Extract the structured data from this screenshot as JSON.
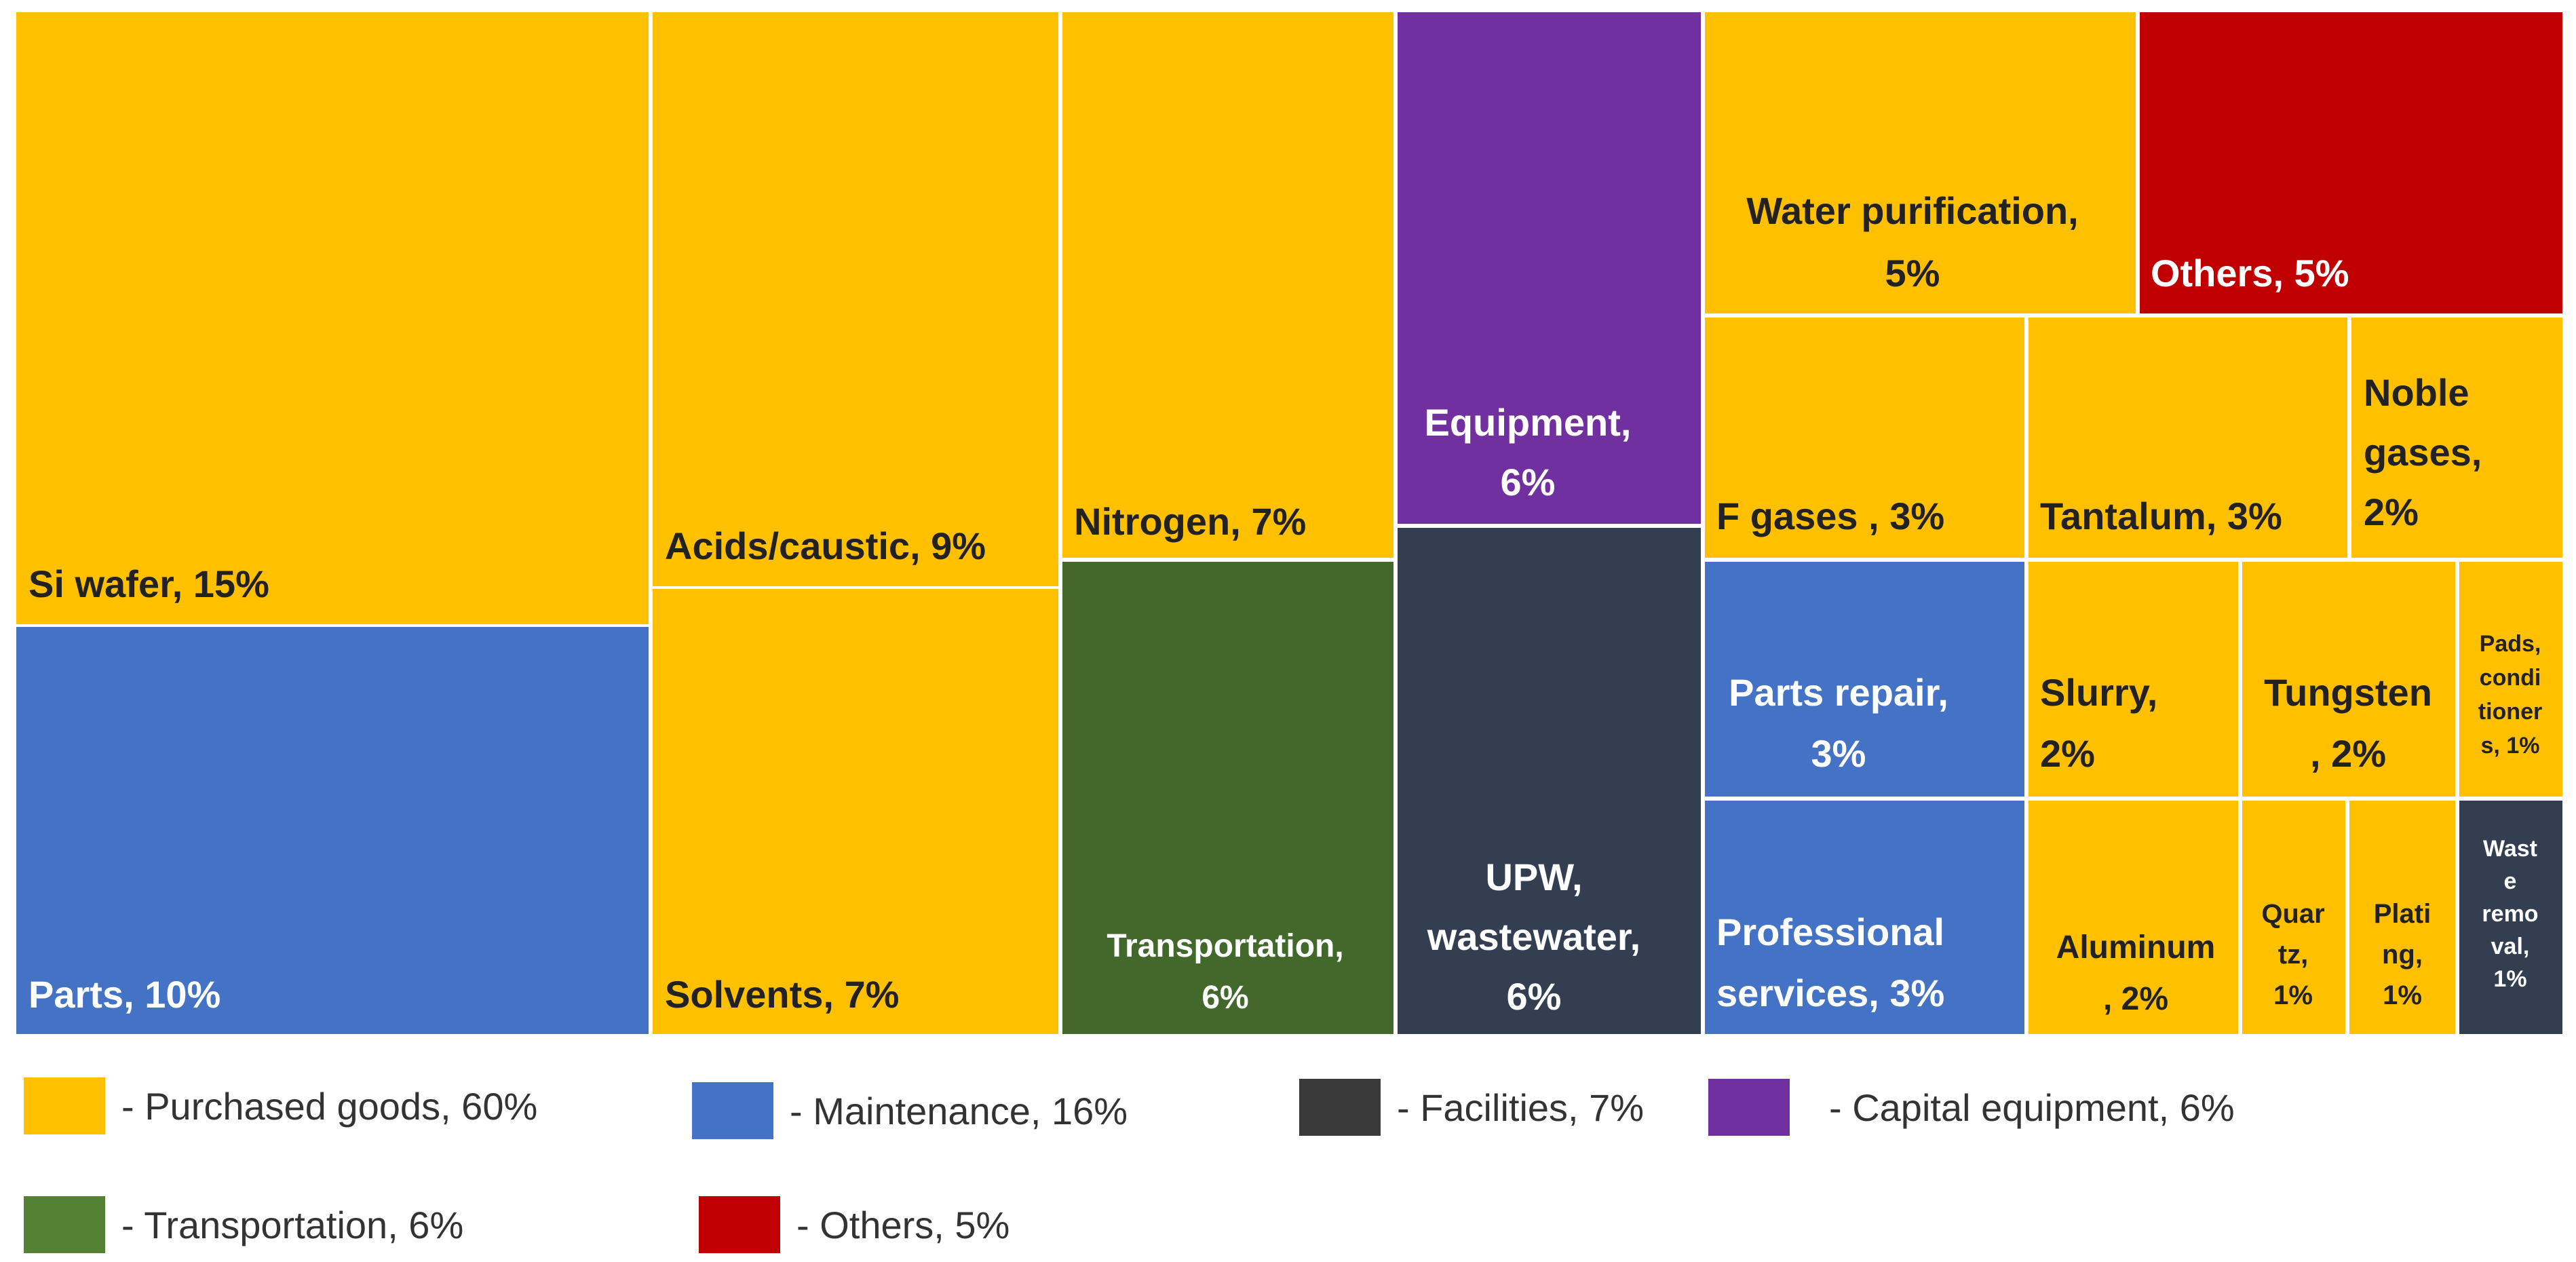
{
  "chart_data": {
    "type": "treemap",
    "categories": {
      "purchased_goods": {
        "label": "- Purchased goods, 60%",
        "color": "#FFC000"
      },
      "maintenance": {
        "label": "- Maintenance, 16%",
        "color": "#4472C4"
      },
      "facilities": {
        "label": "- Facilities, 7%",
        "color": "#333F50"
      },
      "legend_facilities_color": "#3A3A3A",
      "capital_equipment": {
        "label": "- Capital equipment, 6%",
        "color": "#7030A0"
      },
      "transportation": {
        "label": "- Transportation, 6%",
        "color": "#43682B"
      },
      "legend_transportation_color": "#548235",
      "others": {
        "label": "- Others, 5%",
        "color": "#C00000"
      }
    },
    "tiles": [
      {
        "id": "si-wafer",
        "lines": [
          "Si wafer, 15%"
        ],
        "category": "purchased_goods",
        "value": 15
      },
      {
        "id": "parts",
        "lines": [
          "Parts, 10%"
        ],
        "category": "maintenance",
        "value": 10
      },
      {
        "id": "acids-caustic",
        "lines": [
          "Acids/caustic, 9%"
        ],
        "category": "purchased_goods",
        "value": 9
      },
      {
        "id": "solvents",
        "lines": [
          "Solvents, 7%"
        ],
        "category": "purchased_goods",
        "value": 7
      },
      {
        "id": "nitrogen",
        "lines": [
          "Nitrogen, 7%"
        ],
        "category": "purchased_goods",
        "value": 7
      },
      {
        "id": "transportation",
        "lines": [
          "Transportation,",
          "6%"
        ],
        "category": "transportation",
        "value": 6
      },
      {
        "id": "equipment",
        "lines": [
          "Equipment,",
          "6%"
        ],
        "category": "capital_equipment",
        "value": 6
      },
      {
        "id": "upw-wastewater",
        "lines": [
          "UPW,",
          "wastewater,",
          "6%"
        ],
        "category": "facilities",
        "value": 6
      },
      {
        "id": "water-purification",
        "lines": [
          "Water purification,",
          "5%"
        ],
        "category": "purchased_goods",
        "value": 5
      },
      {
        "id": "others",
        "lines": [
          "Others, 5%"
        ],
        "category": "others",
        "value": 5
      },
      {
        "id": "f-gases",
        "lines": [
          "F gases , 3%"
        ],
        "category": "purchased_goods",
        "value": 3
      },
      {
        "id": "tantalum",
        "lines": [
          "Tantalum, 3%"
        ],
        "category": "purchased_goods",
        "value": 3
      },
      {
        "id": "noble-gases",
        "lines": [
          "Noble",
          "gases,",
          "2%"
        ],
        "category": "purchased_goods",
        "value": 2
      },
      {
        "id": "parts-repair",
        "lines": [
          "Parts repair,",
          "3%"
        ],
        "category": "maintenance",
        "value": 3
      },
      {
        "id": "professional-services",
        "lines": [
          "Professional",
          "services, 3%"
        ],
        "category": "maintenance",
        "value": 3
      },
      {
        "id": "slurry",
        "lines": [
          "Slurry,",
          "2%"
        ],
        "category": "purchased_goods",
        "value": 2
      },
      {
        "id": "tungsten",
        "lines": [
          "Tungsten",
          ", 2%"
        ],
        "category": "purchased_goods",
        "value": 2
      },
      {
        "id": "pads-conditioners",
        "lines": [
          "Pads,",
          "condi",
          "tioner",
          "s, 1%"
        ],
        "category": "purchased_goods",
        "value": 1
      },
      {
        "id": "aluminum",
        "lines": [
          "Aluminum",
          ", 2%"
        ],
        "category": "purchased_goods",
        "value": 2
      },
      {
        "id": "quartz",
        "lines": [
          "Quar",
          "tz,",
          "1%"
        ],
        "category": "purchased_goods",
        "value": 1
      },
      {
        "id": "plating",
        "lines": [
          "Plati",
          "ng,",
          "1%"
        ],
        "category": "purchased_goods",
        "value": 1
      },
      {
        "id": "waste-removal",
        "lines": [
          "Wast",
          "e",
          "remo",
          "val,",
          "1%"
        ],
        "category": "facilities",
        "value": 1
      }
    ],
    "legend": [
      "purchased_goods",
      "maintenance",
      "facilities",
      "capital_equipment",
      "transportation",
      "others"
    ]
  }
}
